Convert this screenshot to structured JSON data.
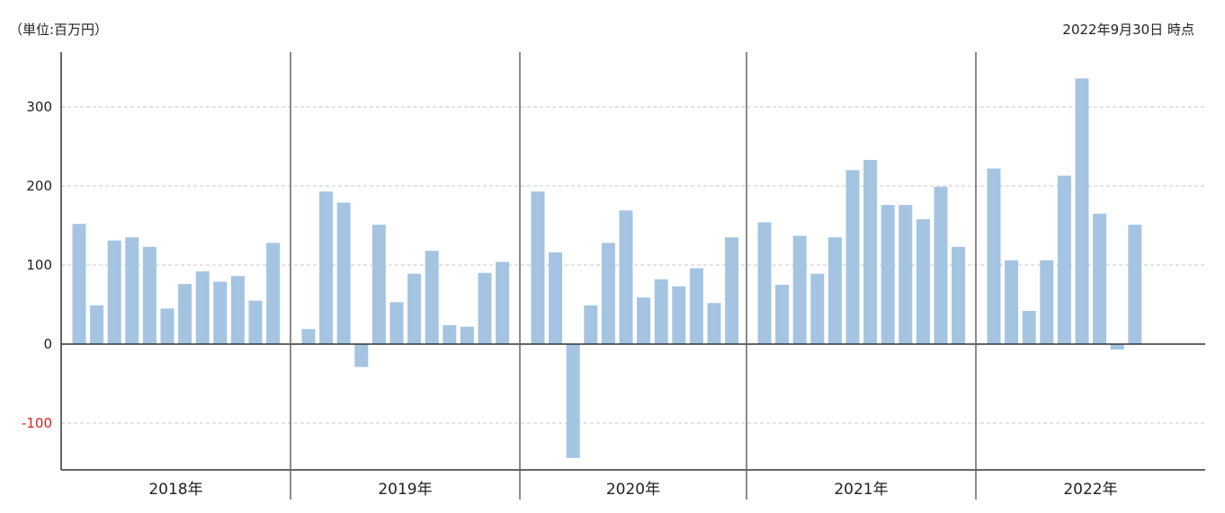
{
  "chart_data": {
    "type": "bar",
    "unit_label": "（単位:百万円）",
    "as_of": "2022年9月30日 時点",
    "ylim": [
      -160,
      365
    ],
    "y_ticks": [
      300,
      200,
      100,
      0,
      -100
    ],
    "grid": true,
    "colors": {
      "bar": "#a4c4e2",
      "negative_tick": "#e02020",
      "axis": "#333333",
      "grid": "#c8c8c8"
    },
    "groups": [
      {
        "label": "2018年",
        "values": [
          152,
          49,
          131,
          135,
          123,
          45,
          76,
          92,
          79,
          86,
          55,
          128
        ]
      },
      {
        "label": "2019年",
        "values": [
          19,
          193,
          179,
          -29,
          151,
          53,
          89,
          118,
          24,
          22,
          90,
          104
        ]
      },
      {
        "label": "2020年",
        "values": [
          193,
          116,
          -144,
          49,
          128,
          169,
          59,
          82,
          73,
          96,
          52,
          135
        ]
      },
      {
        "label": "2021年",
        "values": [
          154,
          75,
          137,
          89,
          135,
          220,
          233,
          176,
          176,
          158,
          199,
          123
        ]
      },
      {
        "label": "2022年",
        "values": [
          222,
          106,
          42,
          106,
          213,
          336,
          165,
          -7,
          151
        ]
      }
    ]
  }
}
